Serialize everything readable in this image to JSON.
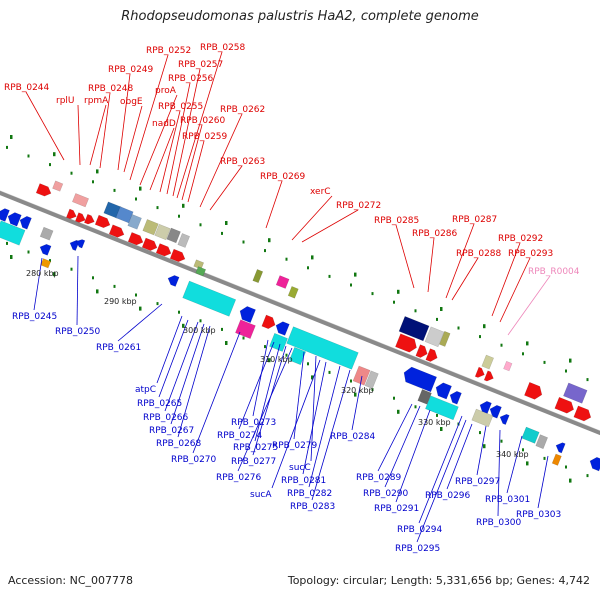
{
  "title": "Rhodopseudomonas palustris HaA2, complete genome",
  "footer": {
    "accession": "Accession: NC_007778",
    "summary": "Topology: circular; Length: 5,331,656 bp; Genes: 4,742"
  },
  "colors": {
    "backbone": "#8a8a8a",
    "top_labels": "#dd0000",
    "bottom_labels": "#0000cc",
    "rna_label": "#ee88bb",
    "strand_plus": "#ee1111",
    "strand_minus": "#0022dd",
    "tick_dots": "#117711"
  },
  "scale_labels": [
    "280 kbp",
    "290 kbp",
    "300 kbp",
    "310 kbp",
    "320 kbp",
    "330 kbp",
    "340 kbp"
  ],
  "top_labels": [
    "RPB_0244",
    "rplU",
    "rpmA",
    "RPB_0248",
    "RPB_0249",
    "obgE",
    "RPB_0252",
    "proA",
    "nadD",
    "RPB_0255",
    "RPB_0256",
    "RPB_0257",
    "RPB_0258",
    "RPB_0260",
    "RPB_0259",
    "RPB_0262",
    "RPB_0263",
    "RPB_0269",
    "xerC",
    "RPB_0272",
    "RPB_0285",
    "RPB_0286",
    "RPB_0287",
    "RPB_0288",
    "RPB_0292",
    "RPB_0293",
    "RPB_R0004"
  ],
  "bottom_labels": [
    "RPB_0245",
    "RPB_0250",
    "RPB_0261",
    "atpC",
    "RPB_0265",
    "RPB_0266",
    "RPB_0267",
    "RPB_0268",
    "RPB_0270",
    "RPB_0273",
    "RPB_0274",
    "RPB_0275",
    "RPB_0277",
    "RPB_0276",
    "RPB_0279",
    "sucC",
    "sucA",
    "RPB_0281",
    "RPB_0282",
    "RPB_0283",
    "RPB_0284",
    "RPB_0289",
    "RPB_0290",
    "RPB_0291",
    "RPB_0294",
    "RPB_0295",
    "RPB_0296",
    "RPB_0297",
    "RPB_0300",
    "RPB_0301",
    "RPB_0303"
  ]
}
